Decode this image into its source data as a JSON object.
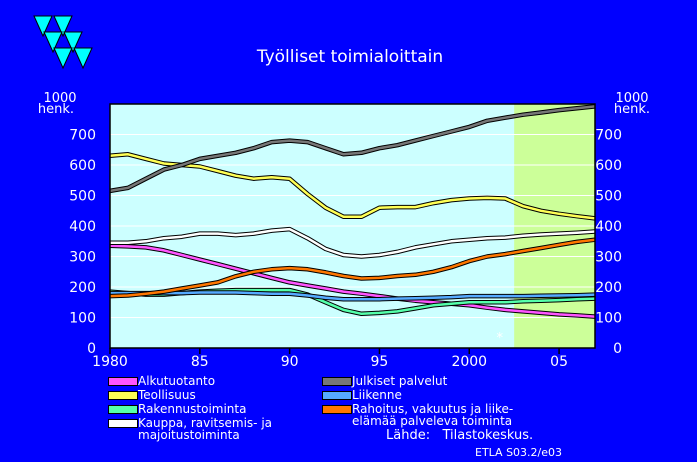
{
  "chart_data": {
    "type": "line",
    "title": "Työlliset  toimialoittain",
    "y_unit_top": "1000",
    "y_unit_bottom": "henk.",
    "ylim": [
      0,
      800
    ],
    "yticks": [
      0,
      100,
      200,
      300,
      400,
      500,
      600,
      700
    ],
    "xlim": [
      1980,
      2007
    ],
    "xticks": [
      1980,
      1985,
      1990,
      1995,
      2000,
      2005
    ],
    "xtick_labels": [
      "1980",
      "85",
      "90",
      "95",
      "2000",
      "05"
    ],
    "forecast_start": 2002.5,
    "forecast_marker": "*",
    "x": [
      1980,
      1981,
      1982,
      1983,
      1984,
      1985,
      1986,
      1987,
      1988,
      1989,
      1990,
      1991,
      1992,
      1993,
      1994,
      1995,
      1996,
      1997,
      1998,
      1999,
      2000,
      2001,
      2002,
      2003,
      2004,
      2005,
      2006,
      2007
    ],
    "series": [
      {
        "name": "Alkutuotanto",
        "color": "#ff55ff",
        "values": [
          335,
          333,
          330,
          320,
          305,
          290,
          275,
          260,
          245,
          230,
          215,
          205,
          195,
          185,
          178,
          170,
          162,
          155,
          150,
          145,
          140,
          132,
          125,
          120,
          115,
          110,
          107,
          103
        ]
      },
      {
        "name": "Teollisuus",
        "color": "#ffff55",
        "values": [
          630,
          635,
          620,
          605,
          600,
          595,
          580,
          565,
          555,
          560,
          555,
          505,
          460,
          430,
          430,
          460,
          462,
          462,
          475,
          485,
          490,
          492,
          490,
          465,
          450,
          440,
          432,
          425
        ]
      },
      {
        "name": "Rakennustoiminta",
        "color": "#55ffaa",
        "values": [
          185,
          180,
          175,
          175,
          180,
          185,
          188,
          190,
          190,
          190,
          190,
          175,
          150,
          125,
          112,
          115,
          120,
          130,
          140,
          145,
          150,
          150,
          150,
          153,
          155,
          157,
          160,
          162
        ]
      },
      {
        "name": "Kauppa, ravitsemis- ja\nmajoitustoiminta",
        "color": "#ffffff",
        "values": [
          345,
          345,
          350,
          360,
          365,
          375,
          375,
          370,
          375,
          385,
          390,
          360,
          325,
          305,
          300,
          305,
          315,
          330,
          340,
          350,
          355,
          360,
          362,
          368,
          372,
          375,
          378,
          382
        ]
      },
      {
        "name": "Julkiset palvelut",
        "color": "#777777",
        "values": [
          515,
          525,
          555,
          585,
          600,
          620,
          630,
          640,
          655,
          675,
          680,
          675,
          655,
          635,
          640,
          655,
          665,
          680,
          695,
          710,
          725,
          745,
          755,
          765,
          772,
          780,
          786,
          792
        ]
      },
      {
        "name": "Liikenne",
        "color": "#55aaff",
        "values": [
          180,
          180,
          180,
          180,
          180,
          182,
          182,
          182,
          180,
          178,
          178,
          172,
          165,
          160,
          160,
          160,
          162,
          163,
          165,
          167,
          170,
          170,
          170,
          170,
          171,
          172,
          173,
          175
        ]
      },
      {
        "name": "Rahoitus, vakuutus ja liike-\nelämää palveleva toiminta",
        "color": "#ff7700",
        "values": [
          170,
          172,
          178,
          185,
          195,
          205,
          215,
          235,
          250,
          258,
          262,
          258,
          248,
          236,
          228,
          230,
          236,
          240,
          250,
          265,
          285,
          300,
          308,
          318,
          328,
          338,
          348,
          355
        ]
      }
    ]
  },
  "source": "Lähde:   Tilastokeskus.",
  "code": "ETLA S03.2/e03"
}
